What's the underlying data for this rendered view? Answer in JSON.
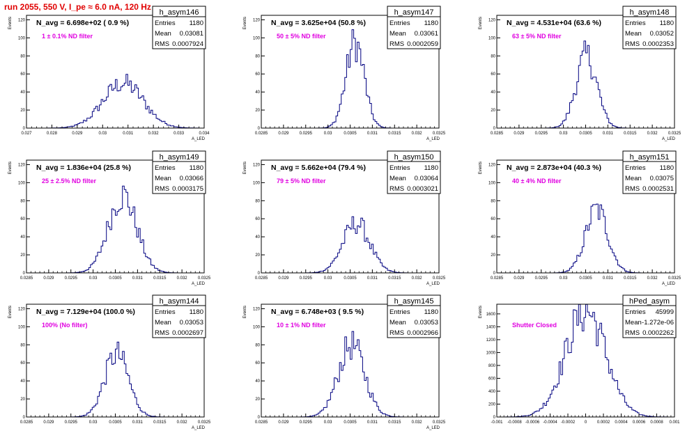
{
  "page_title": "run 2055,   550 V, I_pe ≈ 6.0 nA, 120 Hz",
  "colors": {
    "title": "#e00000",
    "histogram": "#000080",
    "annotation": "#e000e0",
    "frame": "#000000"
  },
  "chart_data": [
    {
      "type": "histogram",
      "name": "h_asym146",
      "title": "N_avg = 6.698e+02 ( 0.9 %)",
      "annotation": "1 ± 0.1% ND filter",
      "ylabel": "Events",
      "xlabel": "A_LED",
      "stats": {
        "entries_label": "Entries",
        "entries": "1180",
        "mean_label": "Mean",
        "mean": "0.03081",
        "rms_label": "RMS",
        "rms": "0.0007924"
      },
      "xlim": [
        0.027,
        0.034
      ],
      "ylim": [
        0,
        125
      ],
      "xticks": [
        "0.027",
        "0.028",
        "0.029",
        "0.03",
        "0.031",
        "0.032",
        "0.033",
        "0.034"
      ],
      "yticks": [
        "0",
        "20",
        "40",
        "60",
        "80",
        "100",
        "120"
      ],
      "mean": 0.03081,
      "sigma": 0.0007924,
      "peak": 50
    },
    {
      "type": "histogram",
      "name": "h_asym147",
      "title": "N_avg = 3.625e+04 (50.8 %)",
      "annotation": "50 ± 5% ND filter",
      "ylabel": "Events",
      "xlabel": "A_LED",
      "stats": {
        "entries_label": "Entries",
        "entries": "1180",
        "mean_label": "Mean",
        "mean": "0.03061",
        "rms_label": "RMS",
        "rms": "0.0002059"
      },
      "xlim": [
        0.0285,
        0.0325
      ],
      "ylim": [
        0,
        125
      ],
      "xticks": [
        "0.0285",
        "0.029",
        "0.0295",
        "0.03",
        "0.0305",
        "0.031",
        "0.0315",
        "0.032",
        "0.0325"
      ],
      "yticks": [
        "0",
        "20",
        "40",
        "60",
        "80",
        "100",
        "120"
      ],
      "mean": 0.03061,
      "sigma": 0.0002059,
      "peak": 95
    },
    {
      "type": "histogram",
      "name": "h_asym148",
      "title": "N_avg = 4.531e+04 (63.6 %)",
      "annotation": "63 ± 5% ND filter",
      "ylabel": "Events",
      "xlabel": "A_LED",
      "stats": {
        "entries_label": "Entries",
        "entries": "1180",
        "mean_label": "Mean",
        "mean": "0.03052",
        "rms_label": "RMS",
        "rms": "0.0002353"
      },
      "xlim": [
        0.0285,
        0.0325
      ],
      "ylim": [
        0,
        125
      ],
      "xticks": [
        "0.0285",
        "0.029",
        "0.0295",
        "0.03",
        "0.0305",
        "0.031",
        "0.0315",
        "0.032",
        "0.0325"
      ],
      "yticks": [
        "0",
        "20",
        "40",
        "60",
        "80",
        "100",
        "120"
      ],
      "mean": 0.03052,
      "sigma": 0.0002353,
      "peak": 80
    },
    {
      "type": "histogram",
      "name": "h_asym149",
      "title": "N_avg = 1.836e+04 (25.8 %)",
      "annotation": "25 ± 2.5% ND filter",
      "ylabel": "Events",
      "xlabel": "A_LED",
      "stats": {
        "entries_label": "Entries",
        "entries": "1180",
        "mean_label": "Mean",
        "mean": "0.03066",
        "rms_label": "RMS",
        "rms": "0.0003175"
      },
      "xlim": [
        0.0285,
        0.0325
      ],
      "ylim": [
        0,
        125
      ],
      "xticks": [
        "0.0285",
        "0.029",
        "0.0295",
        "0.03",
        "0.0305",
        "0.031",
        "0.0315",
        "0.032",
        "0.0325"
      ],
      "yticks": [
        "0",
        "20",
        "40",
        "60",
        "80",
        "100",
        "120"
      ],
      "mean": 0.03066,
      "sigma": 0.0003175,
      "peak": 86
    },
    {
      "type": "histogram",
      "name": "h_asym150",
      "title": "N_avg = 5.662e+04 (79.4 %)",
      "annotation": "79 ± 5% ND filter",
      "ylabel": "Events",
      "xlabel": "A_LED",
      "stats": {
        "entries_label": "Entries",
        "entries": "1180",
        "mean_label": "Mean",
        "mean": "0.03064",
        "rms_label": "RMS",
        "rms": "0.0003021"
      },
      "xlim": [
        0.0285,
        0.0325
      ],
      "ylim": [
        0,
        125
      ],
      "xticks": [
        "0.0285",
        "0.029",
        "0.0295",
        "0.03",
        "0.0305",
        "0.031",
        "0.0315",
        "0.032",
        "0.0325"
      ],
      "yticks": [
        "0",
        "20",
        "40",
        "60",
        "80",
        "100",
        "120"
      ],
      "mean": 0.03064,
      "sigma": 0.0003021,
      "peak": 55
    },
    {
      "type": "histogram",
      "name": "h_asym151",
      "title": "N_avg = 2.873e+04 (40.3 %)",
      "annotation": "40 ± 4% ND filter",
      "ylabel": "Events",
      "xlabel": "A_LED",
      "stats": {
        "entries_label": "Entries",
        "entries": "1180",
        "mean_label": "Mean",
        "mean": "0.03075",
        "rms_label": "RMS",
        "rms": "0.0002531"
      },
      "xlim": [
        0.0285,
        0.0325
      ],
      "ylim": [
        0,
        125
      ],
      "xticks": [
        "0.0285",
        "0.029",
        "0.0295",
        "0.03",
        "0.0305",
        "0.031",
        "0.0315",
        "0.032",
        "0.0325"
      ],
      "yticks": [
        "0",
        "20",
        "40",
        "60",
        "80",
        "100",
        "120"
      ],
      "mean": 0.03075,
      "sigma": 0.0002531,
      "peak": 70
    },
    {
      "type": "histogram",
      "name": "h_asym144",
      "title": "N_avg = 7.129e+04 (100.0 %)",
      "annotation": "100% (No filter)",
      "ylabel": "Events",
      "xlabel": "A_LED",
      "stats": {
        "entries_label": "Entries",
        "entries": "1180",
        "mean_label": "Mean",
        "mean": "0.03053",
        "rms_label": "RMS",
        "rms": "0.0002697"
      },
      "xlim": [
        0.0285,
        0.0325
      ],
      "ylim": [
        0,
        125
      ],
      "xticks": [
        "0.0285",
        "0.029",
        "0.0295",
        "0.03",
        "0.0305",
        "0.031",
        "0.0315",
        "0.032",
        "0.0325"
      ],
      "yticks": [
        "0",
        "20",
        "40",
        "60",
        "80",
        "100",
        "120"
      ],
      "mean": 0.03053,
      "sigma": 0.0002697,
      "peak": 70
    },
    {
      "type": "histogram",
      "name": "h_asym145",
      "title": "N_avg = 6.748e+03 ( 9.5 %)",
      "annotation": "10 ± 1% ND filter",
      "ylabel": "Events",
      "xlabel": "A_LED",
      "stats": {
        "entries_label": "Entries",
        "entries": "1180",
        "mean_label": "Mean",
        "mean": "0.03053",
        "rms_label": "RMS",
        "rms": "0.0002966"
      },
      "xlim": [
        0.0285,
        0.0325
      ],
      "ylim": [
        0,
        125
      ],
      "xticks": [
        "0.0285",
        "0.029",
        "0.0295",
        "0.03",
        "0.0305",
        "0.031",
        "0.0315",
        "0.032",
        "0.0325"
      ],
      "yticks": [
        "0",
        "20",
        "40",
        "60",
        "80",
        "100",
        "120"
      ],
      "mean": 0.03053,
      "sigma": 0.0002966,
      "peak": 80
    },
    {
      "type": "histogram",
      "name": "hPed_asym",
      "title": "",
      "annotation": "Shutter Closed",
      "ylabel": "Events",
      "xlabel": "",
      "stats": {
        "entries_label": "Entries",
        "entries": "45999",
        "mean_label": "Mean",
        "mean": "-1.272e-06",
        "rms_label": "RMS",
        "rms": "0.0002262"
      },
      "xlim": [
        -0.001,
        0.001
      ],
      "ylim": [
        0,
        1750
      ],
      "xticks": [
        "-0.001",
        "-0.0008",
        "-0.0006",
        "-0.0004",
        "-0.0002",
        "0",
        "0.0002",
        "0.0004",
        "0.0006",
        "0.0008",
        "0.001"
      ],
      "yticks": [
        "0",
        "200",
        "400",
        "600",
        "800",
        "1000",
        "1200",
        "1400",
        "1600"
      ],
      "mean": 0.0,
      "sigma": 0.0002262,
      "peak": 1650
    }
  ]
}
